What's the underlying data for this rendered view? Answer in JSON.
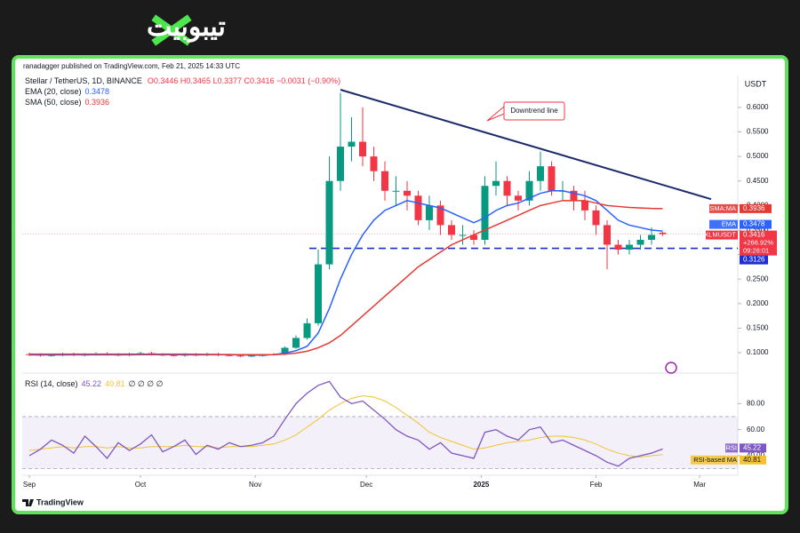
{
  "brand": "تیبوبیت",
  "header": {
    "publisher": "ranadagger published on TradingView.com, Feb 21, 2025 14:33 UTC"
  },
  "footer": {
    "brand": "TradingView"
  },
  "chart_data": [
    {
      "type": "candlestick",
      "title": "Stellar / TetherUS, 1D, BINANCE",
      "ohlc_text": "O0.3446 H0.3465 L0.3377 C0.3416 −0.0031 (−0.90%)",
      "axis_unit": "USDT",
      "xlim": [
        -0.64,
        63.76
      ],
      "ylim": [
        0.0674,
        0.665
      ],
      "yticks": [
        {
          "value": 0.6,
          "label": "0.6000"
        },
        {
          "value": 0.55,
          "label": "0.5500"
        },
        {
          "value": 0.5,
          "label": "0.5000"
        },
        {
          "value": 0.45,
          "label": "0.4500"
        },
        {
          "value": 0.4,
          "label": "0.4000"
        },
        {
          "value": 0.35,
          "label": "0.3500"
        },
        {
          "value": 0.3,
          "label": "0.3000"
        },
        {
          "value": 0.25,
          "label": "0.2500"
        },
        {
          "value": 0.2,
          "label": "0.2000"
        },
        {
          "value": 0.15,
          "label": "0.1500"
        },
        {
          "value": 0.1,
          "label": "0.1000"
        }
      ],
      "xticks": [
        {
          "value": 0,
          "label": "Sep"
        },
        {
          "value": 10,
          "label": "Oct"
        },
        {
          "value": 20.33,
          "label": "Nov"
        },
        {
          "value": 30.33,
          "label": "Dec"
        },
        {
          "value": 40.67,
          "label": "2025"
        },
        {
          "value": 51,
          "label": "Feb"
        },
        {
          "value": 60.33,
          "label": "Mar"
        }
      ],
      "up_color": "#089981",
      "down_color": "#f23645",
      "open": [
        0.097,
        0.096,
        0.094,
        0.095,
        0.097,
        0.095,
        0.096,
        0.098,
        0.096,
        0.095,
        0.097,
        0.099,
        0.096,
        0.095,
        0.094,
        0.096,
        0.095,
        0.097,
        0.095,
        0.094,
        0.093,
        0.094,
        0.095,
        0.097,
        0.11,
        0.13,
        0.16,
        0.28,
        0.45,
        0.52,
        0.53,
        0.5,
        0.47,
        0.43,
        0.43,
        0.42,
        0.37,
        0.4,
        0.36,
        0.34,
        0.34,
        0.33,
        0.44,
        0.45,
        0.42,
        0.41,
        0.45,
        0.48,
        0.43,
        0.43,
        0.41,
        0.39,
        0.36,
        0.32,
        0.31,
        0.32,
        0.33,
        0.3446
      ],
      "high": [
        0.1,
        0.099,
        0.098,
        0.1,
        0.1,
        0.099,
        0.101,
        0.101,
        0.099,
        0.1,
        0.102,
        0.102,
        0.099,
        0.098,
        0.099,
        0.099,
        0.1,
        0.1,
        0.098,
        0.097,
        0.096,
        0.097,
        0.099,
        0.113,
        0.135,
        0.17,
        0.31,
        0.5,
        0.63,
        0.58,
        0.6,
        0.52,
        0.49,
        0.46,
        0.45,
        0.43,
        0.42,
        0.41,
        0.37,
        0.36,
        0.35,
        0.46,
        0.49,
        0.46,
        0.43,
        0.47,
        0.51,
        0.49,
        0.45,
        0.44,
        0.43,
        0.4,
        0.37,
        0.33,
        0.33,
        0.34,
        0.355,
        0.3465
      ],
      "low": [
        0.093,
        0.092,
        0.092,
        0.093,
        0.093,
        0.093,
        0.094,
        0.094,
        0.093,
        0.093,
        0.095,
        0.094,
        0.093,
        0.092,
        0.092,
        0.093,
        0.093,
        0.093,
        0.092,
        0.091,
        0.091,
        0.092,
        0.094,
        0.095,
        0.108,
        0.127,
        0.155,
        0.27,
        0.43,
        0.49,
        0.48,
        0.45,
        0.41,
        0.4,
        0.39,
        0.36,
        0.35,
        0.34,
        0.33,
        0.32,
        0.32,
        0.32,
        0.42,
        0.4,
        0.39,
        0.4,
        0.43,
        0.42,
        0.41,
        0.39,
        0.37,
        0.34,
        0.27,
        0.3,
        0.3,
        0.31,
        0.32,
        0.3377
      ],
      "close": [
        0.096,
        0.094,
        0.095,
        0.097,
        0.095,
        0.096,
        0.098,
        0.096,
        0.095,
        0.097,
        0.099,
        0.096,
        0.095,
        0.094,
        0.096,
        0.095,
        0.097,
        0.095,
        0.094,
        0.093,
        0.094,
        0.095,
        0.097,
        0.11,
        0.13,
        0.16,
        0.28,
        0.45,
        0.52,
        0.53,
        0.5,
        0.47,
        0.43,
        0.43,
        0.42,
        0.37,
        0.4,
        0.36,
        0.34,
        0.34,
        0.33,
        0.44,
        0.45,
        0.42,
        0.41,
        0.45,
        0.48,
        0.43,
        0.43,
        0.41,
        0.39,
        0.36,
        0.32,
        0.31,
        0.32,
        0.33,
        0.34,
        0.3416
      ],
      "lines": [
        {
          "name": "EMA (20, close)",
          "badge": "EMA",
          "color": "#2962ff",
          "values": [
            0.0955,
            0.0955,
            0.0955,
            0.0955,
            0.0956,
            0.0956,
            0.0957,
            0.0958,
            0.0958,
            0.0958,
            0.0959,
            0.096,
            0.096,
            0.0959,
            0.0958,
            0.0958,
            0.0958,
            0.0958,
            0.0957,
            0.0955,
            0.095,
            0.095,
            0.096,
            0.099,
            0.104,
            0.113,
            0.14,
            0.19,
            0.25,
            0.3,
            0.34,
            0.37,
            0.39,
            0.4,
            0.41,
            0.405,
            0.4,
            0.395,
            0.385,
            0.375,
            0.365,
            0.375,
            0.39,
            0.4,
            0.405,
            0.415,
            0.425,
            0.43,
            0.43,
            0.425,
            0.42,
            0.41,
            0.39,
            0.37,
            0.36,
            0.355,
            0.35,
            0.3478
          ]
        },
        {
          "name": "SMA (50, close)",
          "badge": "SMA:MA",
          "color": "#e53935",
          "values": [
            0.097,
            0.097,
            0.097,
            0.097,
            0.097,
            0.097,
            0.097,
            0.097,
            0.097,
            0.097,
            0.097,
            0.097,
            0.097,
            0.097,
            0.097,
            0.0968,
            0.0966,
            0.0964,
            0.0962,
            0.096,
            0.096,
            0.096,
            0.096,
            0.097,
            0.099,
            0.103,
            0.11,
            0.12,
            0.135,
            0.155,
            0.175,
            0.195,
            0.215,
            0.235,
            0.255,
            0.275,
            0.29,
            0.305,
            0.32,
            0.33,
            0.34,
            0.35,
            0.36,
            0.37,
            0.38,
            0.39,
            0.4,
            0.405,
            0.41,
            0.41,
            0.41,
            0.405,
            0.4,
            0.398,
            0.396,
            0.395,
            0.394,
            0.3936
          ]
        }
      ],
      "last_price": {
        "label": "XLMUSDT",
        "value": 0.3416,
        "change": "+266.92%",
        "countdown": "09:26:01"
      },
      "support": {
        "value": 0.3126,
        "color": "#1f2fd0"
      },
      "trendline": {
        "x": [
          28,
          61.36
        ],
        "y": [
          0.636,
          0.413
        ],
        "color": "#1a2a6c"
      },
      "annotation": "Downtrend line"
    },
    {
      "type": "line",
      "title": "RSI (14, close)",
      "extra": "∅ ∅ ∅ ∅",
      "ylim": [
        25,
        100
      ],
      "yticks": [
        {
          "value": 80,
          "label": "80.00"
        },
        {
          "value": 60,
          "label": "60.00"
        },
        {
          "value": 40,
          "label": "40.00"
        }
      ],
      "band": [
        30,
        70
      ],
      "series": [
        {
          "name": "RSI",
          "color": "#7e57c2",
          "values": [
            40,
            45,
            52,
            48,
            42,
            55,
            47,
            38,
            50,
            44,
            49,
            56,
            43,
            47,
            52,
            41,
            48,
            45,
            50,
            47,
            48,
            50,
            55,
            68,
            80,
            88,
            94,
            97,
            85,
            80,
            82,
            75,
            68,
            60,
            55,
            52,
            45,
            50,
            42,
            40,
            38,
            58,
            60,
            55,
            52,
            60,
            62,
            50,
            52,
            48,
            44,
            40,
            35,
            32,
            38,
            40,
            42,
            45.22
          ]
        },
        {
          "name": "RSI-based MA",
          "color": "#f2c230",
          "values": [
            44,
            45,
            46,
            47,
            46,
            47,
            47,
            46,
            47,
            46,
            46,
            47,
            47,
            47,
            48,
            47,
            47,
            46,
            47,
            47,
            47,
            48,
            49,
            52,
            56,
            62,
            68,
            75,
            80,
            84,
            86,
            85,
            82,
            77,
            71,
            65,
            58,
            54,
            51,
            48,
            45,
            46,
            48,
            50,
            51,
            52,
            54,
            55,
            55,
            54,
            52,
            49,
            45,
            42,
            40,
            39,
            40,
            40.81
          ]
        }
      ]
    }
  ]
}
